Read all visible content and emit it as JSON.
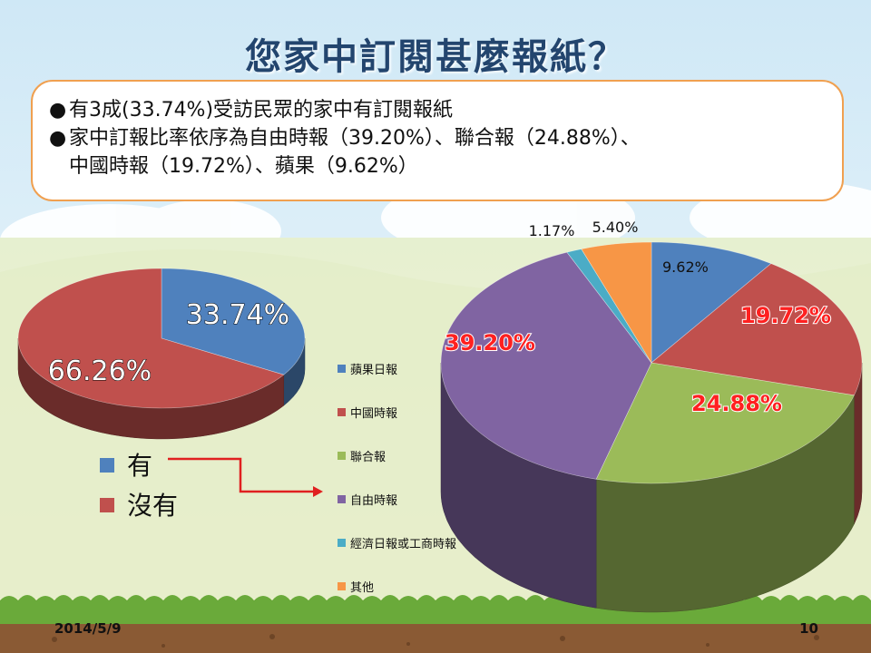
{
  "title": "您家中訂閱甚麼報紙？",
  "bullets": [
    {
      "marker": "●",
      "text": "有3成(33.74%)受訪民眾的家中有訂閱報紙"
    },
    {
      "marker": "●",
      "text": "家中訂報比率依序為自由時報（39.20%）、聯合報（24.88%）、"
    },
    {
      "marker": "",
      "text": "中國時報（19.72%）、蘋果（9.62%）"
    }
  ],
  "chart_data": [
    {
      "type": "pie",
      "style": "3d",
      "categories": [
        "有",
        "沒有"
      ],
      "values": [
        33.74,
        66.26
      ],
      "labels": [
        "33.74%",
        "66.26%"
      ],
      "colors": [
        "#4f81bd",
        "#c0504d"
      ],
      "legend": "bottom-left"
    },
    {
      "type": "pie",
      "style": "3d",
      "categories": [
        "蘋果日報",
        "中國時報",
        "聯合報",
        "自由時報",
        "經濟日報或工商時報",
        "其他"
      ],
      "values": [
        9.62,
        19.72,
        24.88,
        39.2,
        1.17,
        5.4
      ],
      "labels": [
        "9.62%",
        "19.72%",
        "24.88%",
        "39.20%",
        "1.17%",
        "5.40%"
      ],
      "colors": [
        "#4f81bd",
        "#c0504d",
        "#9bbb59",
        "#8064a2",
        "#4bacc6",
        "#f79646"
      ],
      "legend": "left"
    }
  ],
  "footer": {
    "date": "2014/5/9",
    "page": "10"
  }
}
